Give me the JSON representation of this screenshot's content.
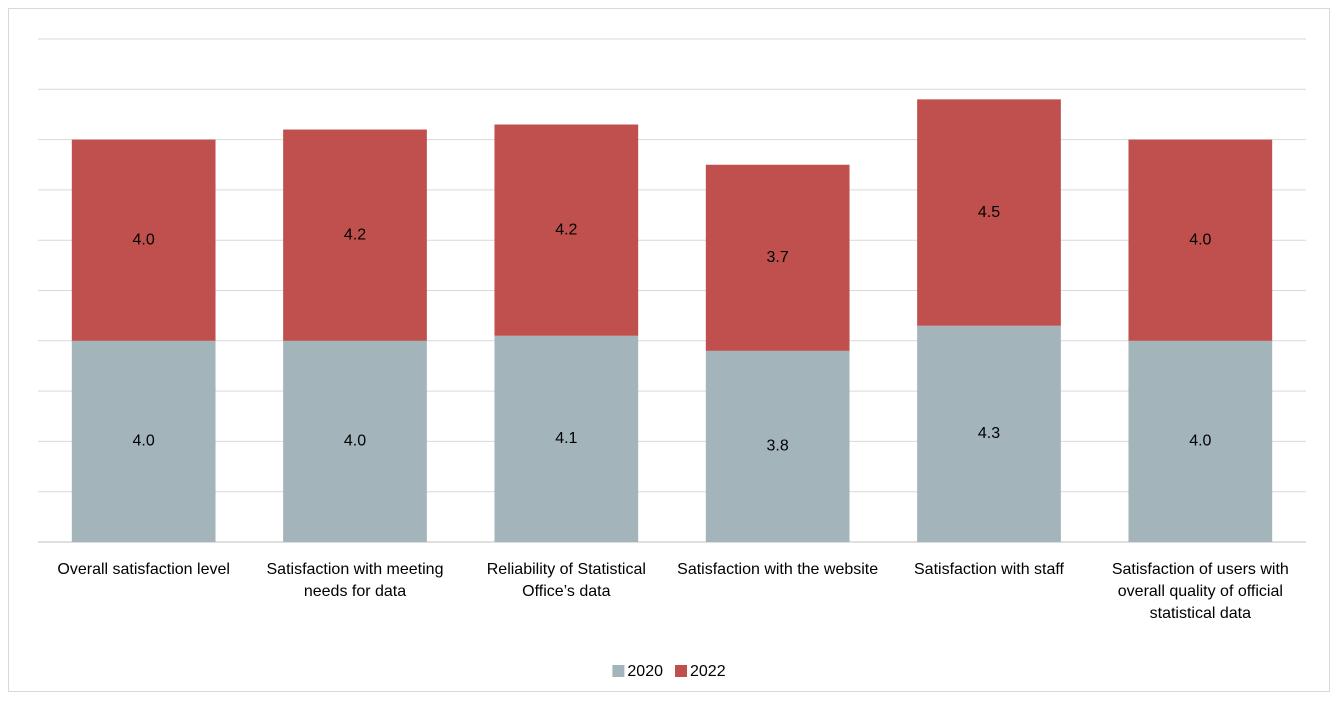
{
  "chart_data": {
    "type": "stacked_bar",
    "categories": [
      "Overall satisfaction level",
      "Satisfaction with meeting needs for data",
      "Reliability of Statistical Office’s data",
      "Satisfaction with the website",
      "Satisfaction with staff",
      "Satisfaction of users with overall quality of official statistical data"
    ],
    "series": [
      {
        "name": "2020",
        "color": "#a3b4bb",
        "values": [
          4.0,
          4.0,
          4.1,
          3.8,
          4.3,
          4.0
        ],
        "value_labels": [
          "4.0",
          "4.0",
          "4.1",
          "3.8",
          "4.3",
          "4.0"
        ]
      },
      {
        "name": "2022",
        "color": "#c0504d",
        "values": [
          4.0,
          4.2,
          4.2,
          3.7,
          4.5,
          4.0
        ],
        "value_labels": [
          "4.0",
          "4.2",
          "4.2",
          "3.7",
          "4.5",
          "4.0"
        ]
      }
    ],
    "ylim": [
      0,
      10
    ],
    "yticks": [
      0,
      1,
      2,
      3,
      4,
      5,
      6,
      7,
      8,
      9,
      10
    ],
    "grid": true,
    "legend": "bottom"
  }
}
